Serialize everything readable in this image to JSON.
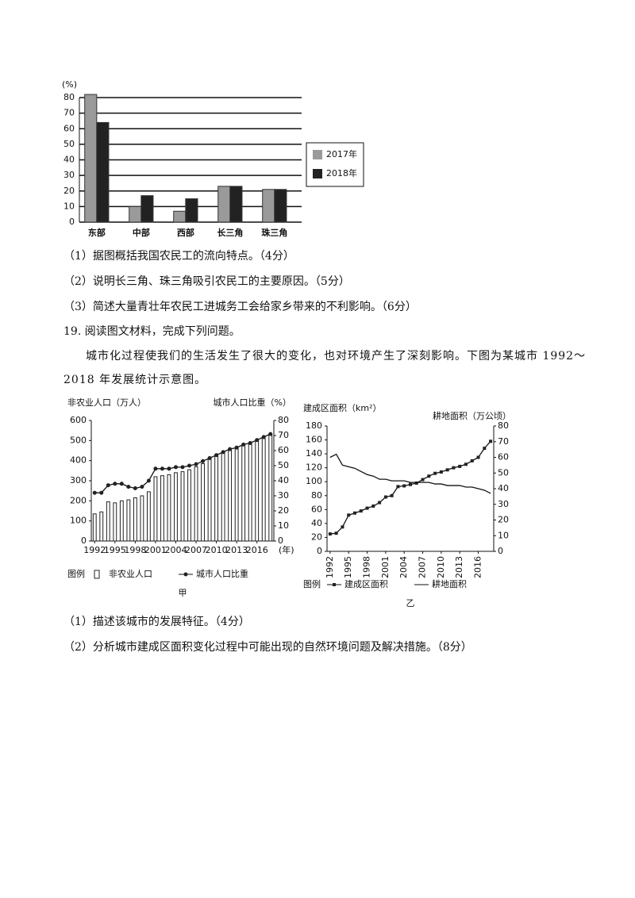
{
  "figure1": {
    "type": "bar",
    "y_label": "(%)",
    "categories": [
      "东部",
      "中部",
      "西部",
      "长三角",
      "珠三角"
    ],
    "series": [
      {
        "name": "2017年",
        "color": "#9a9a9a",
        "values": [
          82,
          10,
          7,
          23,
          21
        ]
      },
      {
        "name": "2018年",
        "color": "#222222",
        "values": [
          64,
          17,
          15,
          23,
          21
        ]
      }
    ],
    "ylim": [
      0,
      80
    ],
    "yticks": [
      0,
      10,
      20,
      30,
      40,
      50,
      60,
      70,
      80
    ],
    "grid": true
  },
  "q18": [
    "（1）据图概括我国农民工的流向特点。（4分）",
    "（2）说明长三角、珠三角吸引农民工的主要原因。（5分）",
    "（3）简述大量青壮年农民工进城务工会给家乡带来的不利影响。（6分）"
  ],
  "q19": {
    "heading": "19. 阅读图文材料，完成下列问题。",
    "material": "城市化过程使我们的生活发生了很大的变化，也对环境产生了深刻影响。下图为某城市 1992～2018 年发展统计示意图。",
    "questions": [
      "（1）描述该城市的发展特征。（4分）",
      "（2）分析城市建成区面积变化过程中可能出现的自然环境问题及解决措施。（8分）"
    ]
  },
  "figure2": {
    "legend_title": "图例",
    "charts": [
      {
        "type": "combo",
        "caption": "甲",
        "y_label": "非农业人口（万人）",
        "y2_label": "城市人口比重（%）",
        "x_label": "(年)",
        "x": [
          1992,
          1993,
          1994,
          1995,
          1996,
          1997,
          1998,
          1999,
          2000,
          2001,
          2002,
          2003,
          2004,
          2005,
          2006,
          2007,
          2008,
          2009,
          2010,
          2011,
          2012,
          2013,
          2014,
          2015,
          2016,
          2017,
          2018
        ],
        "series": [
          {
            "name": "非农业人口",
            "kind": "bar",
            "color": "#ffffff",
            "values": [
              135,
              145,
              195,
              190,
              200,
              205,
              215,
              225,
              245,
              320,
              325,
              330,
              340,
              345,
              355,
              370,
              385,
              410,
              425,
              440,
              450,
              460,
              475,
              485,
              500,
              510,
              530
            ]
          },
          {
            "name": "城市人口比重",
            "kind": "line",
            "marker": "circle",
            "color": "#222222",
            "axis": "y2",
            "values": [
              32,
              32,
              37,
              38,
              38,
              36,
              35,
              36,
              40,
              48,
              48,
              48,
              49,
              49,
              50,
              51,
              53,
              55,
              57,
              59,
              61,
              62,
              64,
              65,
              67,
              69,
              71
            ]
          }
        ],
        "xlim": [
          1991.5,
          2018.5
        ],
        "xticks": [
          1992,
          1995,
          1998,
          2001,
          2004,
          2007,
          2010,
          2013,
          2016
        ],
        "ylim": [
          0,
          600
        ],
        "yticks": [
          0,
          100,
          200,
          300,
          400,
          500,
          600
        ],
        "y2lim": [
          0,
          80
        ],
        "y2ticks": [
          0,
          10,
          20,
          30,
          40,
          50,
          60,
          70,
          80
        ]
      },
      {
        "type": "line",
        "caption": "乙",
        "y_label": "建成区面积（km²）",
        "y2_label": "耕地面积（万公顷）",
        "x": [
          1992,
          1993,
          1994,
          1995,
          1996,
          1997,
          1998,
          1999,
          2000,
          2001,
          2002,
          2003,
          2004,
          2005,
          2006,
          2007,
          2008,
          2009,
          2010,
          2011,
          2012,
          2013,
          2014,
          2015,
          2016,
          2017,
          2018
        ],
        "series": [
          {
            "name": "建成区面积",
            "kind": "line",
            "marker": "square",
            "color": "#222222",
            "values": [
              25,
              26,
              35,
              52,
              55,
              58,
              62,
              65,
              70,
              78,
              80,
              93,
              94,
              96,
              98,
              103,
              108,
              112,
              114,
              117,
              120,
              122,
              125,
              130,
              135,
              148,
              158
            ]
          },
          {
            "name": "耕地面积",
            "kind": "line",
            "marker": "none",
            "color": "#222222",
            "axis": "y2",
            "values": [
              60,
              62,
              55,
              54,
              53,
              51,
              49,
              48,
              46,
              46,
              45,
              45,
              45,
              44,
              44,
              44,
              44,
              43,
              43,
              42,
              42,
              42,
              41,
              41,
              40,
              39,
              37
            ]
          }
        ],
        "xlim": [
          1991.5,
          2018.5
        ],
        "xticks": [
          1992,
          1995,
          1998,
          2001,
          2004,
          2007,
          2010,
          2013,
          2016
        ],
        "ylim": [
          0,
          180
        ],
        "yticks": [
          0,
          20,
          40,
          60,
          80,
          100,
          120,
          140,
          160,
          180
        ],
        "y2lim": [
          0,
          80
        ],
        "y2ticks": [
          0,
          10,
          20,
          30,
          40,
          50,
          60,
          70,
          80
        ]
      }
    ]
  }
}
